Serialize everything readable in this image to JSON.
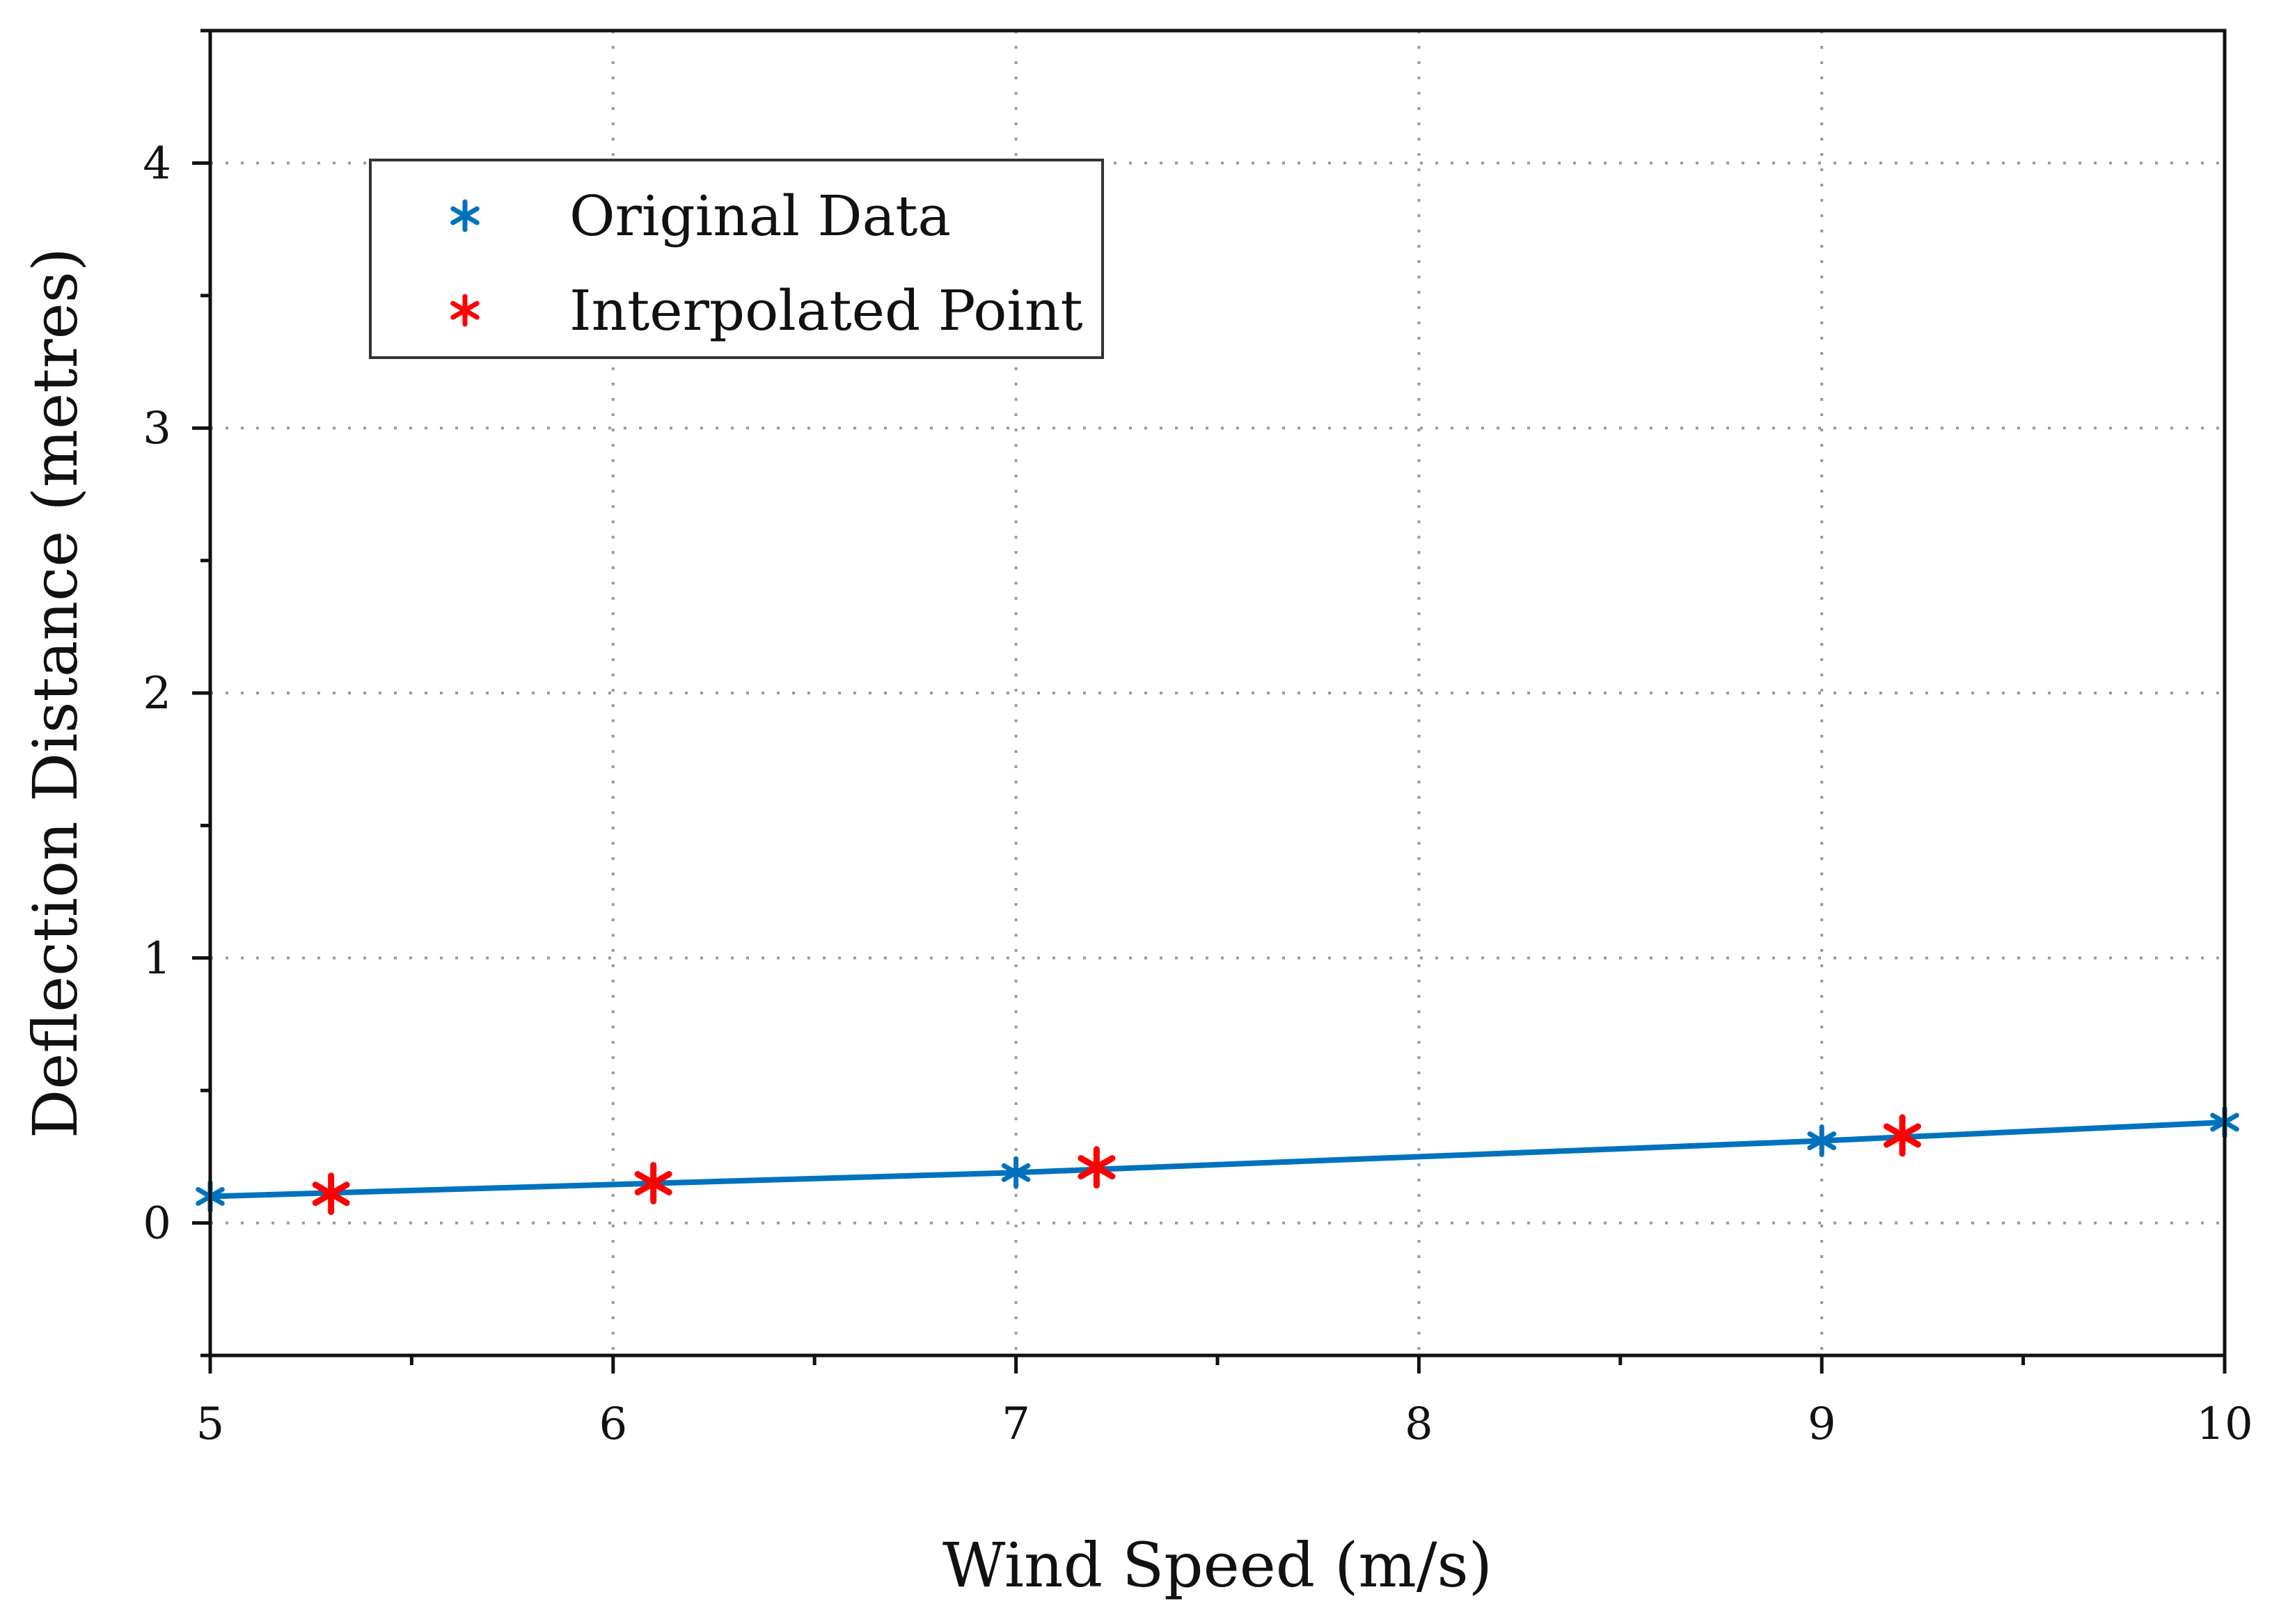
{
  "chart_data": {
    "type": "line",
    "xlabel": "Wind Speed (m/s)",
    "ylabel": "Deflection Distance (metres)",
    "xlim": [
      5,
      10
    ],
    "ylim": [
      -0.5,
      4.5
    ],
    "xticks": [
      5,
      6,
      7,
      8,
      9,
      10
    ],
    "xtick_labels": [
      "5",
      "6",
      "7",
      "8",
      "9",
      "10"
    ],
    "yticks": [
      0,
      1,
      2,
      3,
      4
    ],
    "ytick_labels": [
      "0",
      "1",
      "2",
      "3",
      "4"
    ],
    "grid": true,
    "legend_position": "top-left",
    "series": [
      {
        "name": "Original Data",
        "color": "#0072BD",
        "marker": "asterisk",
        "line": true,
        "points": [
          {
            "x": 5,
            "y": 0.1
          },
          {
            "x": 7,
            "y": 0.19
          },
          {
            "x": 9,
            "y": 0.31
          },
          {
            "x": 10,
            "y": 0.38
          }
        ]
      },
      {
        "name": "Interpolated Point",
        "color": "#FF0000",
        "marker": "asterisk",
        "line": false,
        "points": [
          {
            "x": 5.3,
            "y": 0.11
          },
          {
            "x": 6.1,
            "y": 0.15
          },
          {
            "x": 7.2,
            "y": 0.21
          },
          {
            "x": 9.2,
            "y": 0.33
          }
        ]
      }
    ]
  }
}
